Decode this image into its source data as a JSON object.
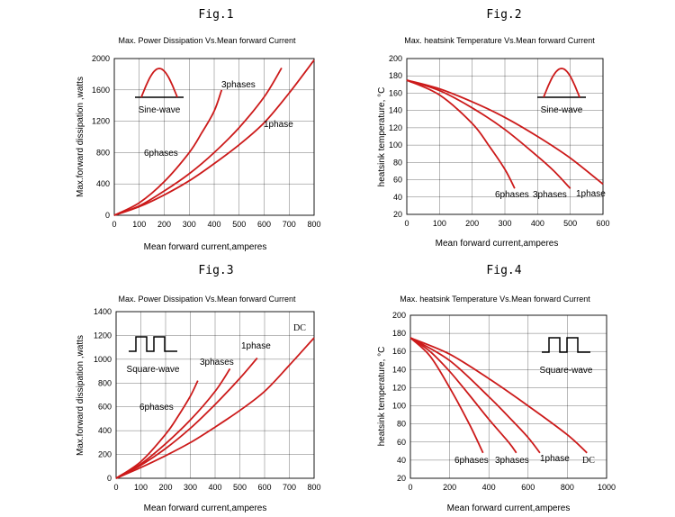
{
  "figures": [
    {
      "label": "Fig.1",
      "icon": "sine-wave-icon",
      "icon_text": "Sine-wave",
      "chart_data": {
        "type": "line",
        "title": "Max. Power Dissipation Vs.Mean forward Current",
        "xlabel": "Mean forward current,amperes",
        "ylabel": "Max.forward dissipation ,watts",
        "xlim": [
          0,
          800
        ],
        "ylim": [
          0,
          2000
        ],
        "xticks": [
          0,
          100,
          200,
          300,
          400,
          500,
          600,
          700,
          800
        ],
        "yticks": [
          0,
          400,
          800,
          1200,
          1600,
          2000
        ],
        "grid": true,
        "series": [
          {
            "name": "6phases",
            "color": "#cc1a1a",
            "x": [
              0,
              100,
              200,
              300,
              350,
              400,
              430
            ],
            "y": [
              0,
              160,
              430,
              800,
              1050,
              1330,
              1600
            ]
          },
          {
            "name": "3phases",
            "color": "#cc1a1a",
            "x": [
              0,
              100,
              200,
              300,
              400,
              500,
              600,
              670
            ],
            "y": [
              0,
              120,
              310,
              530,
              800,
              1120,
              1510,
              1880
            ]
          },
          {
            "name": "1phase",
            "color": "#cc1a1a",
            "x": [
              0,
              100,
              200,
              300,
              400,
              500,
              600,
              700,
              800
            ],
            "y": [
              0,
              110,
              260,
              440,
              660,
              900,
              1180,
              1560,
              1980
            ]
          }
        ]
      }
    },
    {
      "label": "Fig.2",
      "icon": "sine-wave-icon",
      "icon_text": "Sine-wave",
      "chart_data": {
        "type": "line",
        "title": "Max. heatsink Temperature Vs.Mean forward Current",
        "xlabel": "Mean forward current,amperes",
        "ylabel": "heatsink temperature, °C",
        "xlim": [
          0,
          600
        ],
        "ylim": [
          20,
          200
        ],
        "xticks": [
          0,
          100,
          200,
          300,
          400,
          500,
          600
        ],
        "yticks": [
          20,
          40,
          60,
          80,
          100,
          120,
          140,
          160,
          180,
          200
        ],
        "grid": true,
        "series": [
          {
            "name": "6phases",
            "color": "#cc1a1a",
            "x": [
              0,
              100,
              200,
              250,
              300,
              330
            ],
            "y": [
              175,
              158,
              125,
              100,
              72,
              50
            ]
          },
          {
            "name": "3phases",
            "color": "#cc1a1a",
            "x": [
              0,
              100,
              200,
              300,
              400,
              450,
              500
            ],
            "y": [
              175,
              163,
              143,
              118,
              87,
              70,
              50
            ]
          },
          {
            "name": "1phase",
            "color": "#cc1a1a",
            "x": [
              0,
              100,
              200,
              300,
              400,
              500,
              600
            ],
            "y": [
              175,
              165,
              150,
              132,
              110,
              85,
              55
            ]
          }
        ]
      }
    },
    {
      "label": "Fig.3",
      "icon": "square-wave-icon",
      "icon_text": "Square-wave",
      "chart_data": {
        "type": "line",
        "title": "Max. Power Dissipation Vs.Mean forward Current",
        "xlabel": "Mean forward current,amperes",
        "ylabel": "Max.forward dissipation ,watts",
        "xlim": [
          0,
          800
        ],
        "ylim": [
          0,
          1400
        ],
        "xticks": [
          0,
          100,
          200,
          300,
          400,
          500,
          600,
          700,
          800
        ],
        "yticks": [
          0,
          200,
          400,
          600,
          800,
          1000,
          1200,
          1400
        ],
        "grid": true,
        "series": [
          {
            "name": "6phases",
            "color": "#cc1a1a",
            "x": [
              0,
              100,
              200,
              250,
              300,
              330
            ],
            "y": [
              0,
              140,
              370,
              520,
              690,
              820
            ]
          },
          {
            "name": "3phases",
            "color": "#cc1a1a",
            "x": [
              0,
              100,
              200,
              300,
              400,
              460
            ],
            "y": [
              0,
              120,
              290,
              490,
              730,
              920
            ]
          },
          {
            "name": "1phase",
            "color": "#cc1a1a",
            "x": [
              0,
              100,
              200,
              300,
              400,
              500,
              570
            ],
            "y": [
              0,
              110,
              250,
              420,
              620,
              840,
              1010
            ]
          },
          {
            "name": "DC",
            "color": "#cc1a1a",
            "x": [
              0,
              100,
              200,
              300,
              400,
              500,
              600,
              700,
              800
            ],
            "y": [
              0,
              90,
              190,
              300,
              430,
              570,
              730,
              950,
              1180
            ]
          }
        ]
      }
    },
    {
      "label": "Fig.4",
      "icon": "square-wave-icon",
      "icon_text": "Square-wave",
      "chart_data": {
        "type": "line",
        "title": "Max. heatsink Temperature Vs.Mean forward Current",
        "xlabel": "Mean forward current,amperes",
        "ylabel": "heatsink temperature, °C",
        "xlim": [
          0,
          1000
        ],
        "ylim": [
          20,
          200
        ],
        "xticks": [
          0,
          200,
          400,
          600,
          800,
          1000
        ],
        "yticks": [
          20,
          40,
          60,
          80,
          100,
          120,
          140,
          160,
          180,
          200
        ],
        "grid": true,
        "series": [
          {
            "name": "6phases",
            "color": "#cc1a1a",
            "x": [
              0,
              100,
              200,
              300,
              370
            ],
            "y": [
              175,
              155,
              120,
              80,
              48
            ]
          },
          {
            "name": "3phases",
            "color": "#cc1a1a",
            "x": [
              0,
              100,
              200,
              300,
              400,
              500,
              540
            ],
            "y": [
              175,
              160,
              138,
              112,
              85,
              60,
              48
            ]
          },
          {
            "name": "1phase",
            "color": "#cc1a1a",
            "x": [
              0,
              200,
              400,
              500,
              600,
              660
            ],
            "y": [
              175,
              150,
              110,
              88,
              65,
              48
            ]
          },
          {
            "name": "DC",
            "color": "#cc1a1a",
            "x": [
              0,
              200,
              400,
              600,
              800,
              900
            ],
            "y": [
              175,
              157,
              130,
              100,
              68,
              48
            ]
          }
        ]
      }
    }
  ]
}
